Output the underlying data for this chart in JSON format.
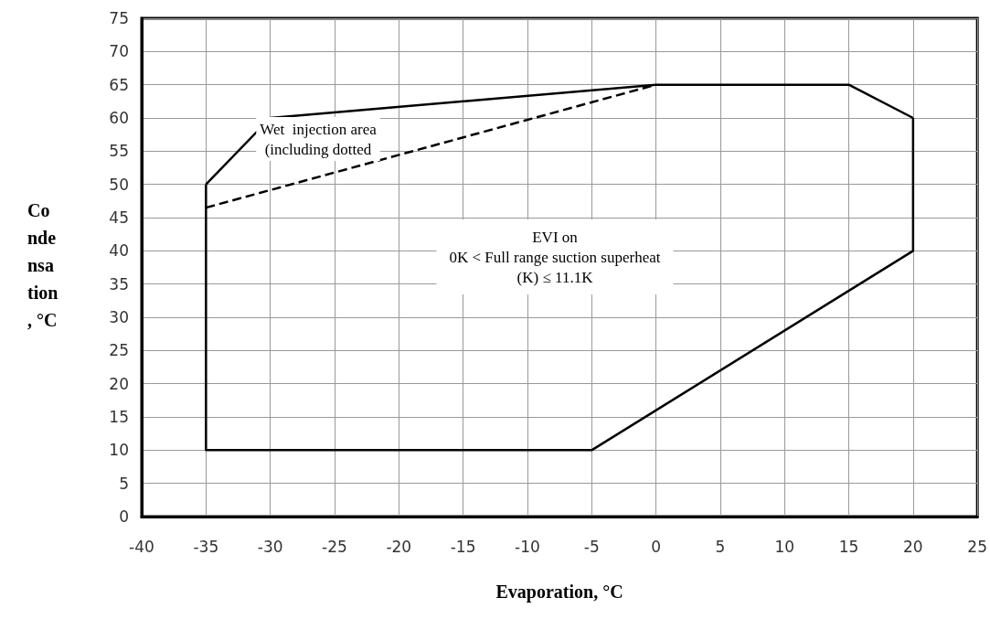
{
  "chart_data": {
    "type": "line",
    "xlabel": "Evaporation, °C",
    "ylabel": "Condensation, °C",
    "xlim": [
      -40,
      25
    ],
    "xticks": [
      -40,
      -35,
      -30,
      -25,
      -20,
      -15,
      -10,
      -5,
      0,
      5,
      10,
      15,
      20,
      25
    ],
    "ylim": [
      0,
      75
    ],
    "yticks": [
      0,
      5,
      10,
      15,
      20,
      25,
      30,
      35,
      40,
      45,
      50,
      55,
      60,
      65,
      70,
      75
    ],
    "grid": true,
    "marker": "none",
    "series": [
      {
        "color": "#000000",
        "line_style": "solid",
        "x": [
          -35,
          -35,
          -5,
          20,
          20
        ],
        "values": [
          50,
          10,
          10,
          40,
          60
        ]
      },
      {
        "color": "#000000",
        "line_style": "solid",
        "x": [
          -35,
          -30,
          0,
          15,
          20
        ],
        "values": [
          50,
          60,
          65,
          65,
          60
        ]
      },
      {
        "color": "#000000",
        "line_style": "dashed",
        "x": [
          -35,
          0
        ],
        "values": [
          46.5,
          65
        ]
      }
    ],
    "annotations": [
      "Wet  injection area\n(including dotted",
      "EVI on\n0K < Full range suction superheat\n(K) ≤ 11.1K"
    ]
  }
}
